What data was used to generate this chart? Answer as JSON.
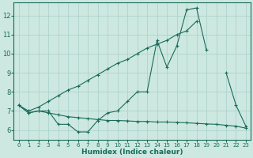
{
  "xlabel": "Humidex (Indice chaleur)",
  "background_color": "#cce8e0",
  "grid_color": "#aacfca",
  "line_color": "#1a6b5a",
  "x_values": [
    0,
    1,
    2,
    3,
    4,
    5,
    6,
    7,
    8,
    9,
    10,
    11,
    12,
    13,
    14,
    15,
    16,
    17,
    18,
    19,
    20,
    21,
    22,
    23
  ],
  "curve_zigzag": [
    7.3,
    6.9,
    7.0,
    7.0,
    6.3,
    6.3,
    5.9,
    5.9,
    6.5,
    6.9,
    7.0,
    7.5,
    8.0,
    8.0,
    10.7,
    9.3,
    10.4,
    12.3,
    12.4,
    10.2,
    null,
    9.0,
    7.3,
    6.2
  ],
  "curve_linear": [
    7.3,
    7.0,
    7.2,
    7.5,
    7.8,
    8.1,
    8.3,
    8.6,
    8.9,
    9.2,
    9.5,
    9.7,
    10.0,
    10.3,
    10.5,
    10.7,
    11.0,
    11.2,
    11.7,
    null,
    null,
    null,
    null,
    null
  ],
  "curve_flat": [
    7.3,
    6.9,
    7.0,
    6.9,
    6.8,
    6.7,
    6.65,
    6.6,
    6.55,
    6.5,
    6.5,
    6.48,
    6.45,
    6.45,
    6.42,
    6.42,
    6.4,
    6.38,
    6.35,
    6.32,
    6.3,
    6.25,
    6.2,
    6.1
  ],
  "xlim": [
    -0.5,
    23.5
  ],
  "ylim": [
    5.5,
    12.7
  ],
  "yticks": [
    6,
    7,
    8,
    9,
    10,
    11,
    12
  ],
  "xticks": [
    0,
    1,
    2,
    3,
    4,
    5,
    6,
    7,
    8,
    9,
    10,
    11,
    12,
    13,
    14,
    15,
    16,
    17,
    18,
    19,
    20,
    21,
    22,
    23
  ]
}
